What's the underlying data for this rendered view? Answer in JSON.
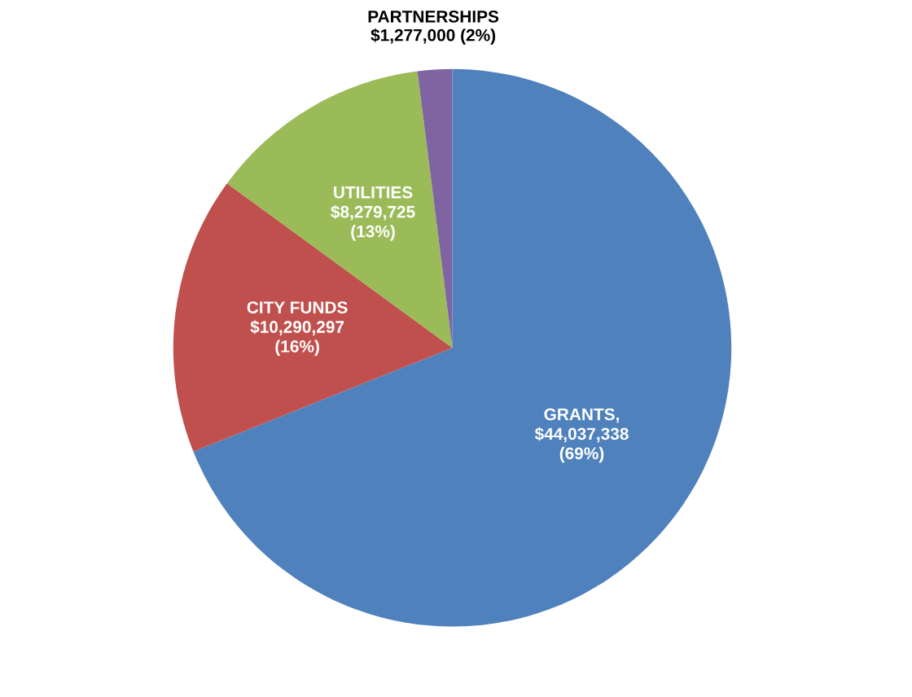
{
  "chart_data": {
    "type": "pie",
    "categories": [
      "GRANTS",
      "CITY FUNDS",
      "UTILITIES",
      "PARTNERSHIPS"
    ],
    "values": [
      44037338,
      10290297,
      8279725,
      1277000
    ],
    "value_labels": [
      ",\n$44,037,338\n(69%)",
      "\n$10,290,297\n(16%)",
      "\n$8,279,725\n(13%)",
      "\n$1,277,000 (2%)"
    ],
    "colors": [
      "#4f81bd",
      "#c0504d",
      "#9bbb59",
      "#8064a2"
    ],
    "legend": false
  }
}
